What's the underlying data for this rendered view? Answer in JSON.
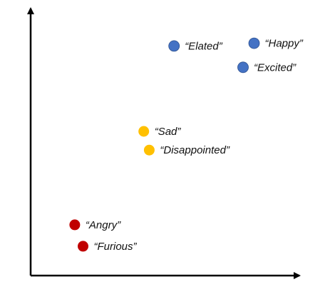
{
  "chart_data": {
    "type": "scatter",
    "title": "",
    "xlabel": "",
    "ylabel": "",
    "grid": false,
    "xlim": [
      0,
      10
    ],
    "ylim": [
      0,
      10
    ],
    "points": [
      {
        "label": "“Elated”",
        "x": 5.2,
        "y": 8.6,
        "color": "#4472C4"
      },
      {
        "label": "“Happy”",
        "x": 8.1,
        "y": 8.7,
        "color": "#4472C4"
      },
      {
        "label": "“Excited”",
        "x": 7.7,
        "y": 7.8,
        "color": "#4472C4"
      },
      {
        "label": "“Sad”",
        "x": 4.1,
        "y": 5.4,
        "color": "#FFC000"
      },
      {
        "label": "“Disappointed”",
        "x": 4.3,
        "y": 4.7,
        "color": "#FFC000"
      },
      {
        "label": "“Angry”",
        "x": 1.6,
        "y": 1.9,
        "color": "#C00000"
      },
      {
        "label": "“Furious”",
        "x": 1.9,
        "y": 1.1,
        "color": "#C00000"
      }
    ]
  }
}
